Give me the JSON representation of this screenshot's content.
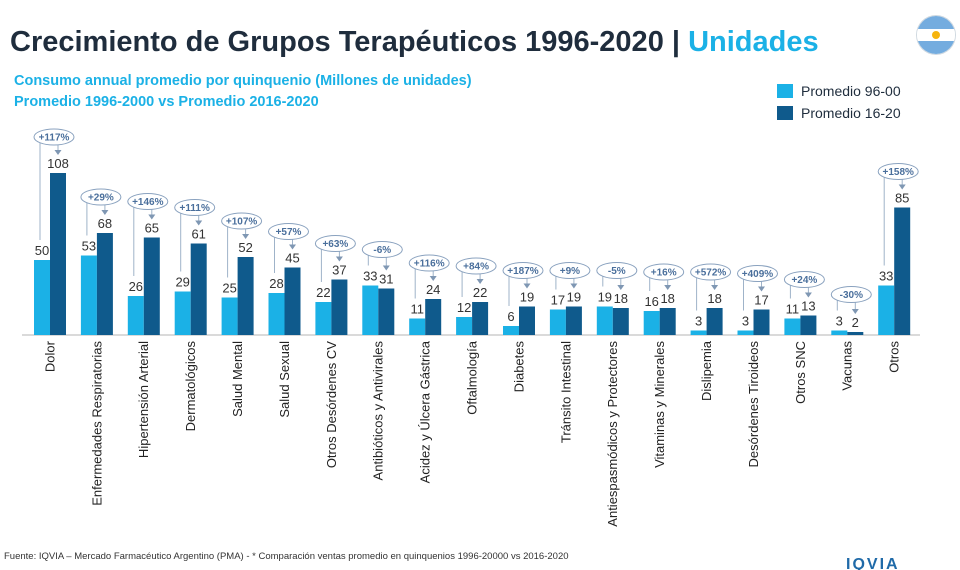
{
  "header": {
    "title_main": "Crecimiento de Grupos Terapéuticos 1996-2020",
    "title_sep": "|",
    "title_accent": "Unidades",
    "subtitle1": "Consumo annual promedio por quinquenio (Millones de unidades)",
    "subtitle2": "Promedio 1996-2000 vs Promedio 2016-2020"
  },
  "colors": {
    "series1": "#1bb1e6",
    "series2": "#0f5a8c",
    "accent": "#1bb1e6",
    "callout": "#4a6f9c",
    "flag_blue": "#74acdf",
    "flag_sun": "#f6b40e"
  },
  "icons": {
    "flag": "argentina-flag-icon"
  },
  "footer": {
    "source": "Fuente: IQVIA – Mercado Farmacéutico Argentino (PMA) - * Comparación ventas promedio en quinquenios 1996-20000 vs 2016-2020",
    "logo": "IQVIA"
  },
  "chart_data": {
    "type": "bar",
    "title": "Crecimiento de Grupos Terapéuticos 1996-2020 | Unidades",
    "ylabel": "",
    "xlabel": "",
    "ylim": [
      0,
      110
    ],
    "grid": false,
    "legend_position": "top-right",
    "categories": [
      "Dolor",
      "Enfermedades Respiratorias",
      "Hipertensión Arterial",
      "Dermatológicos",
      "Salud Mental",
      "Salud Sexual",
      "Otros Desórdenes CV",
      "Antibióticos y Antivirales",
      "Acidez y Úlcera Gástrica",
      "Oftalmología",
      "Diabetes",
      "Tránsito Intestinal",
      "Antiespasmódicos y Protectores",
      "Vitaminas y Minerales",
      "Dislipemia",
      "Desórdenes Tiroideos",
      "Otros SNC",
      "Vacunas",
      "Otros"
    ],
    "series": [
      {
        "name": "Promedio 96-00",
        "values": [
          50,
          53,
          26,
          29,
          25,
          28,
          22,
          33,
          11,
          12,
          6,
          17,
          19,
          16,
          3,
          3,
          11,
          3,
          33
        ]
      },
      {
        "name": "Promedio 16-20",
        "values": [
          108,
          68,
          65,
          61,
          52,
          45,
          37,
          31,
          24,
          22,
          19,
          19,
          18,
          18,
          18,
          17,
          13,
          2,
          85
        ]
      }
    ],
    "growth_labels": [
      "+117%",
      "+29%",
      "+146%",
      "+111%",
      "+107%",
      "+57%",
      "+63%",
      "-6%",
      "+116%",
      "+84%",
      "+187%",
      "+9%",
      "-5%",
      "+16%",
      "+572%",
      "+409%",
      "+24%",
      "-30%",
      "+158%"
    ]
  }
}
